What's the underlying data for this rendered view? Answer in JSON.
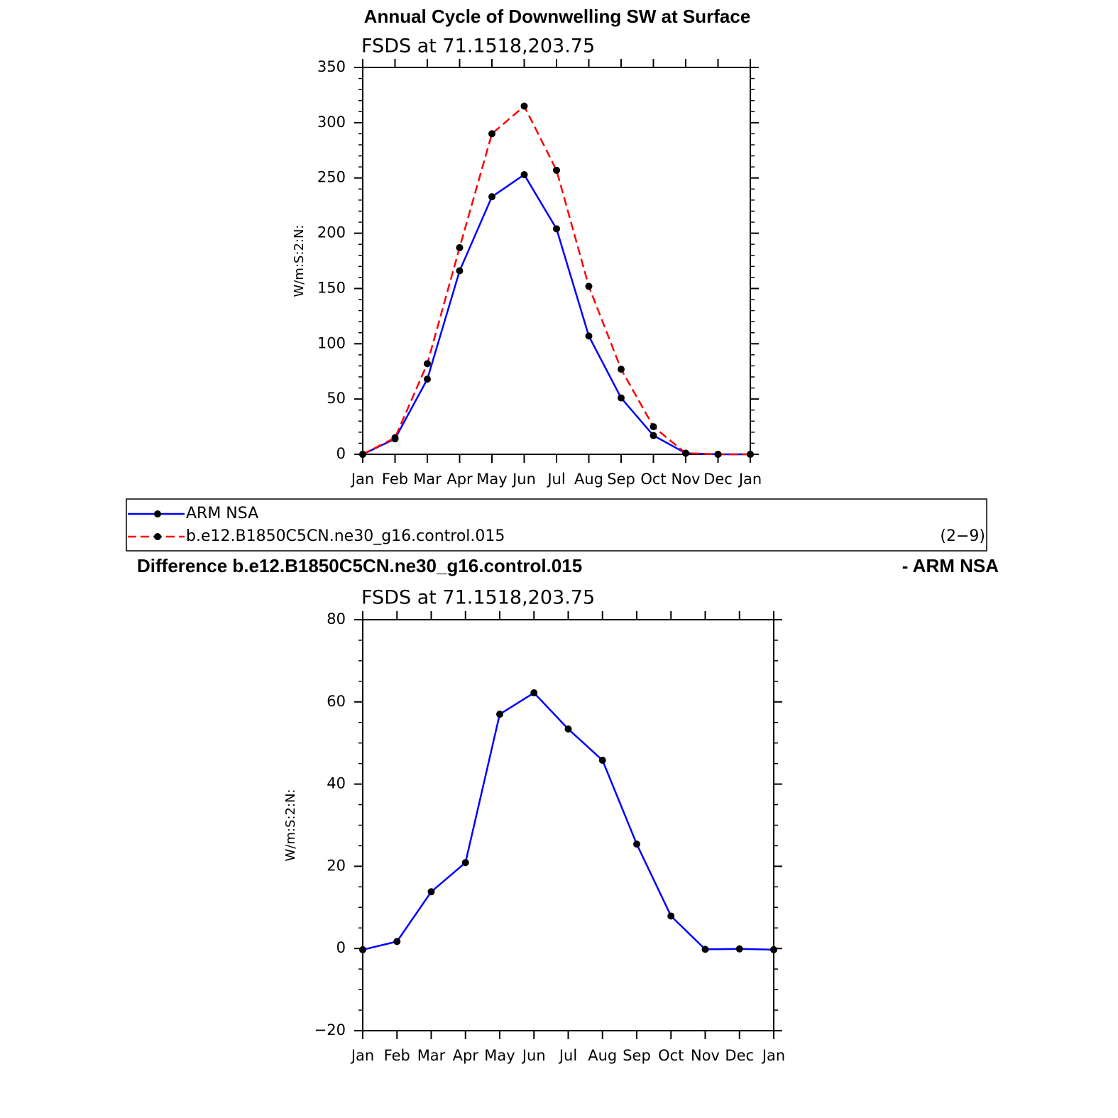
{
  "chart_data": [
    {
      "type": "line",
      "title": "Annual Cycle of Downwelling SW at Surface",
      "subtitle": "FSDS at 71.1518,203.75",
      "ylabel": "W/m:S:2:N:",
      "categories": [
        "Jan",
        "Feb",
        "Mar",
        "Apr",
        "May",
        "Jun",
        "Jul",
        "Aug",
        "Sep",
        "Oct",
        "Nov",
        "Dec",
        "Jan"
      ],
      "series": [
        {
          "name": "ARM NSA",
          "color": "#0000ff",
          "dash": false,
          "values": [
            0,
            14,
            68,
            166,
            233,
            253,
            204,
            107,
            51,
            17,
            1,
            0,
            0
          ]
        },
        {
          "name": "b.e12.B1850C5CN.ne30_g16.control.015",
          "color": "#ff0000",
          "dash": true,
          "values": [
            0,
            15,
            82,
            187,
            290,
            315,
            257,
            152,
            77,
            25,
            1,
            0,
            0
          ]
        }
      ],
      "ylim": [
        0,
        350
      ],
      "yticks": [
        0,
        50,
        100,
        150,
        200,
        250,
        300,
        350
      ],
      "legend_note": "(2−9)"
    },
    {
      "type": "line",
      "title": "Difference b.e12.B1850C5CN.ne30_g16.control.015",
      "title_right": "- ARM NSA",
      "subtitle": "FSDS at 71.1518,203.75",
      "ylabel": "W/m:S:2:N:",
      "categories": [
        "Jan",
        "Feb",
        "Mar",
        "Apr",
        "May",
        "Jun",
        "Jul",
        "Aug",
        "Sep",
        "Oct",
        "Nov",
        "Dec",
        "Jan"
      ],
      "color": "#0000ff",
      "values": [
        -0.3,
        1.7,
        13.8,
        20.9,
        57,
        62.2,
        53.4,
        45.8,
        25.4,
        7.9,
        -0.2,
        -0.1,
        -0.3
      ],
      "ylim": [
        -20,
        80
      ],
      "yticks": [
        {
          "value": -20,
          "label": "−20"
        },
        0,
        20,
        40,
        60,
        80
      ]
    }
  ]
}
